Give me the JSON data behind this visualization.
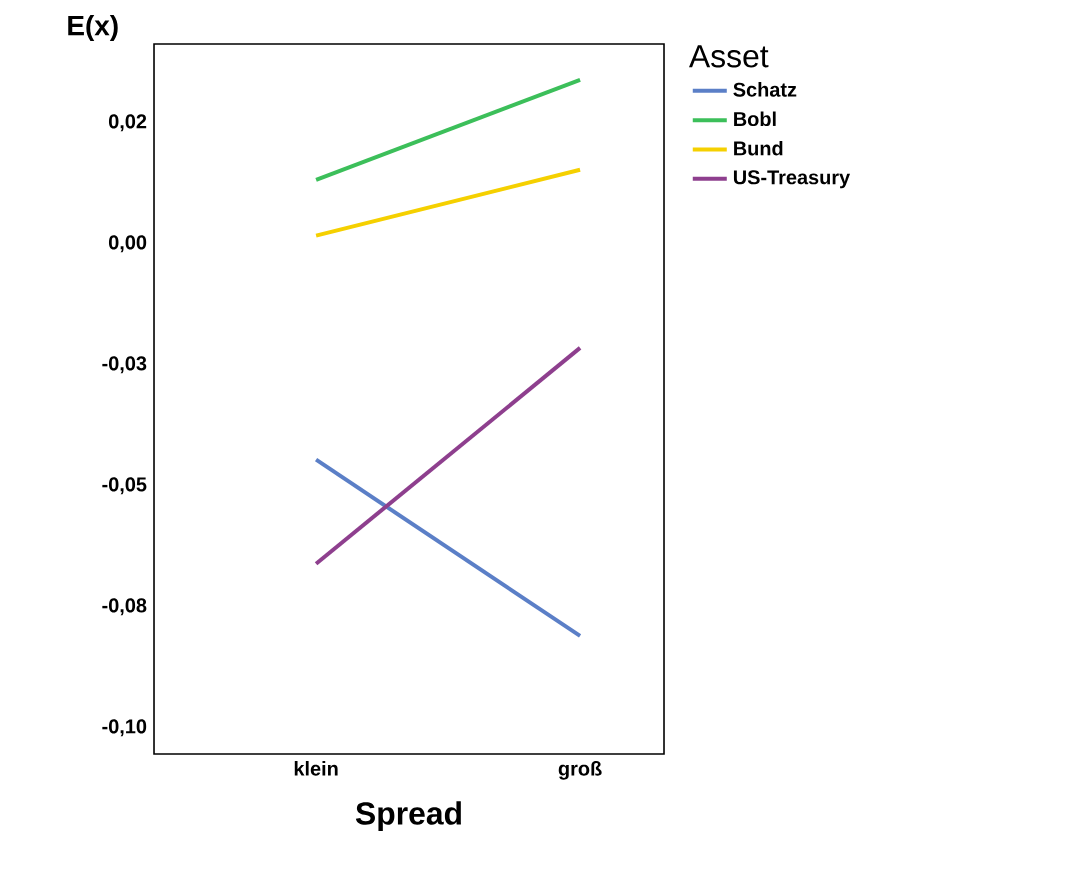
{
  "chart_data": {
    "type": "line",
    "xlabel": "Spread",
    "ylabel": "E(x)",
    "legend_title": "Asset",
    "legend": "right",
    "categories": [
      "klein",
      "groß"
    ],
    "ylim": [
      -0.1054,
      0.0413
    ],
    "yticks": [
      {
        "value": 0.025,
        "label": "0,02"
      },
      {
        "value": 0,
        "label": "0,00"
      },
      {
        "value": -0.025,
        "label": "-0,03"
      },
      {
        "value": -0.05,
        "label": "-0,05"
      },
      {
        "value": -0.075,
        "label": "-0,08"
      },
      {
        "value": -0.1,
        "label": "-0,10"
      }
    ],
    "series": [
      {
        "name": "Schatz",
        "color": "#5b7fc7",
        "values": [
          -0.0446,
          -0.081
        ]
      },
      {
        "name": "Bobl",
        "color": "#3cbf5a",
        "values": [
          0.0132,
          0.0339
        ]
      },
      {
        "name": "Bund",
        "color": "#f5d000",
        "values": [
          0.0017,
          0.0153
        ]
      },
      {
        "name": "US-Treasury",
        "color": "#8e3f8e",
        "values": [
          -0.0661,
          -0.0215
        ]
      }
    ]
  }
}
